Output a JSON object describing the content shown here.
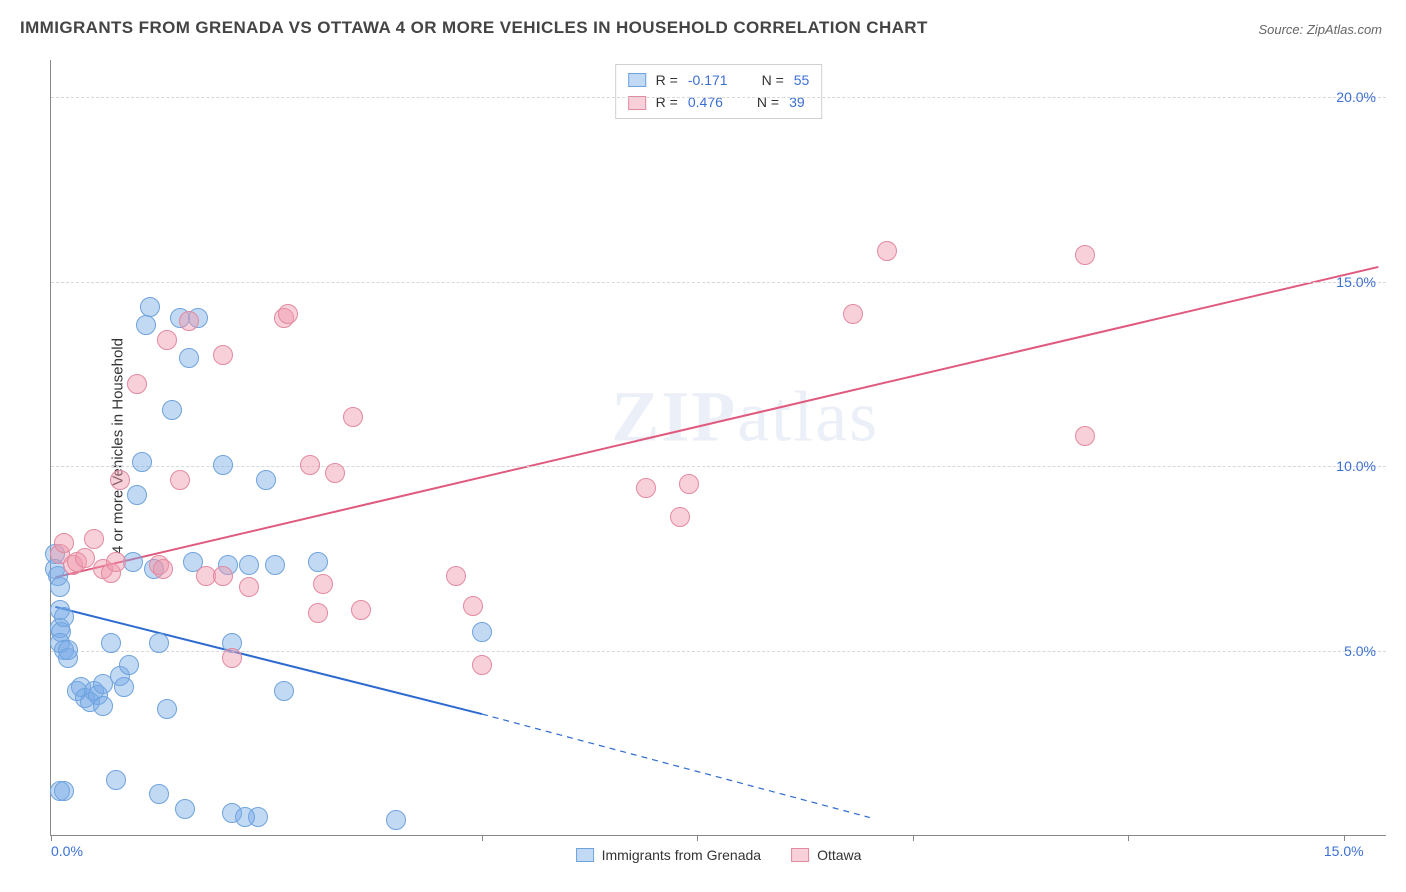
{
  "title": "IMMIGRANTS FROM GRENADA VS OTTAWA 4 OR MORE VEHICLES IN HOUSEHOLD CORRELATION CHART",
  "source": "Source: ZipAtlas.com",
  "ylabel": "4 or more Vehicles in Household",
  "watermark_bold": "ZIP",
  "watermark_light": "atlas",
  "chart": {
    "type": "scatter",
    "xlim": [
      0,
      15.5
    ],
    "ylim": [
      0,
      21
    ],
    "yticks": [
      5,
      10,
      15,
      20
    ],
    "ytick_labels": [
      "5.0%",
      "10.0%",
      "15.0%",
      "20.0%"
    ],
    "xticks": [
      0,
      5,
      7.5,
      10,
      12.5,
      15
    ],
    "xtick_labels": {
      "0": "0.0%",
      "15": "15.0%"
    },
    "grid_color": "#d8d8d8",
    "axis_color": "#888888",
    "background": "#ffffff",
    "tick_label_color": "#3b6fd4",
    "tick_label_fontsize": 14,
    "ylabel_fontsize": 15,
    "title_fontsize": 17
  },
  "series": [
    {
      "id": "grenada",
      "label": "Immigrants from Grenada",
      "fill": "rgba(120,170,230,0.45)",
      "stroke": "#6fa3dd",
      "marker_radius": 10,
      "stats": {
        "R": "-0.171",
        "N": "55"
      },
      "trend": {
        "start": [
          0.05,
          6.2
        ],
        "end": [
          5.0,
          3.3
        ],
        "extrap_end": [
          9.5,
          0.5
        ],
        "color": "#2e6bd0",
        "width": 2
      },
      "points": [
        [
          0.05,
          7.6
        ],
        [
          0.05,
          7.2
        ],
        [
          0.08,
          7.0
        ],
        [
          0.1,
          6.7
        ],
        [
          0.1,
          6.1
        ],
        [
          0.1,
          5.6
        ],
        [
          0.12,
          5.5
        ],
        [
          0.15,
          5.9
        ],
        [
          0.1,
          5.2
        ],
        [
          0.15,
          5.0
        ],
        [
          0.2,
          4.8
        ],
        [
          0.2,
          5.0
        ],
        [
          0.3,
          3.9
        ],
        [
          0.35,
          4.0
        ],
        [
          0.4,
          3.7
        ],
        [
          0.45,
          3.6
        ],
        [
          0.5,
          3.9
        ],
        [
          0.55,
          3.8
        ],
        [
          0.6,
          4.1
        ],
        [
          0.6,
          3.5
        ],
        [
          0.7,
          5.2
        ],
        [
          0.8,
          4.3
        ],
        [
          0.85,
          4.0
        ],
        [
          0.9,
          4.6
        ],
        [
          0.95,
          7.4
        ],
        [
          1.0,
          9.2
        ],
        [
          1.05,
          10.1
        ],
        [
          1.1,
          13.8
        ],
        [
          1.15,
          14.3
        ],
        [
          1.2,
          7.2
        ],
        [
          1.25,
          5.2
        ],
        [
          1.35,
          3.4
        ],
        [
          1.4,
          11.5
        ],
        [
          1.5,
          14.0
        ],
        [
          1.6,
          12.9
        ],
        [
          1.65,
          7.4
        ],
        [
          1.7,
          14.0
        ],
        [
          2.0,
          10.0
        ],
        [
          2.05,
          7.3
        ],
        [
          2.1,
          5.2
        ],
        [
          2.3,
          7.3
        ],
        [
          2.5,
          9.6
        ],
        [
          2.6,
          7.3
        ],
        [
          2.7,
          3.9
        ],
        [
          3.1,
          7.4
        ],
        [
          0.1,
          1.2
        ],
        [
          0.15,
          1.2
        ],
        [
          0.75,
          1.5
        ],
        [
          1.25,
          1.1
        ],
        [
          1.55,
          0.7
        ],
        [
          2.1,
          0.6
        ],
        [
          2.4,
          0.5
        ],
        [
          2.25,
          0.5
        ],
        [
          4.0,
          0.4
        ],
        [
          5.0,
          5.5
        ]
      ]
    },
    {
      "id": "ottawa",
      "label": "Ottawa",
      "fill": "rgba(240,150,170,0.45)",
      "stroke": "#e38aa0",
      "marker_radius": 10,
      "stats": {
        "R": "0.476",
        "N": "39"
      },
      "trend": {
        "start": [
          0.05,
          7.0
        ],
        "end": [
          15.4,
          15.4
        ],
        "color": "#e05a7e",
        "width": 2
      },
      "points": [
        [
          0.1,
          7.6
        ],
        [
          0.15,
          7.9
        ],
        [
          0.25,
          7.3
        ],
        [
          0.3,
          7.4
        ],
        [
          0.4,
          7.5
        ],
        [
          0.5,
          8.0
        ],
        [
          0.6,
          7.2
        ],
        [
          0.7,
          7.1
        ],
        [
          0.75,
          7.4
        ],
        [
          0.8,
          9.6
        ],
        [
          1.0,
          12.2
        ],
        [
          1.25,
          7.3
        ],
        [
          1.3,
          7.2
        ],
        [
          1.35,
          13.4
        ],
        [
          1.5,
          9.6
        ],
        [
          1.6,
          13.9
        ],
        [
          1.8,
          7.0
        ],
        [
          2.0,
          7.0
        ],
        [
          2.0,
          13.0
        ],
        [
          2.1,
          4.8
        ],
        [
          2.3,
          6.7
        ],
        [
          2.7,
          14.0
        ],
        [
          2.75,
          14.1
        ],
        [
          3.0,
          10.0
        ],
        [
          3.1,
          6.0
        ],
        [
          3.15,
          6.8
        ],
        [
          3.3,
          9.8
        ],
        [
          3.5,
          11.3
        ],
        [
          3.6,
          6.1
        ],
        [
          4.7,
          7.0
        ],
        [
          4.9,
          6.2
        ],
        [
          5.0,
          4.6
        ],
        [
          6.9,
          9.4
        ],
        [
          7.3,
          8.6
        ],
        [
          7.4,
          9.5
        ],
        [
          9.7,
          15.8
        ],
        [
          9.3,
          14.1
        ],
        [
          12.0,
          15.7
        ],
        [
          12.0,
          10.8
        ]
      ]
    }
  ],
  "stats_box": {
    "r_prefix": "R = ",
    "n_prefix": "N = "
  },
  "bottom_legend": [
    {
      "series": "grenada"
    },
    {
      "series": "ottawa"
    }
  ]
}
